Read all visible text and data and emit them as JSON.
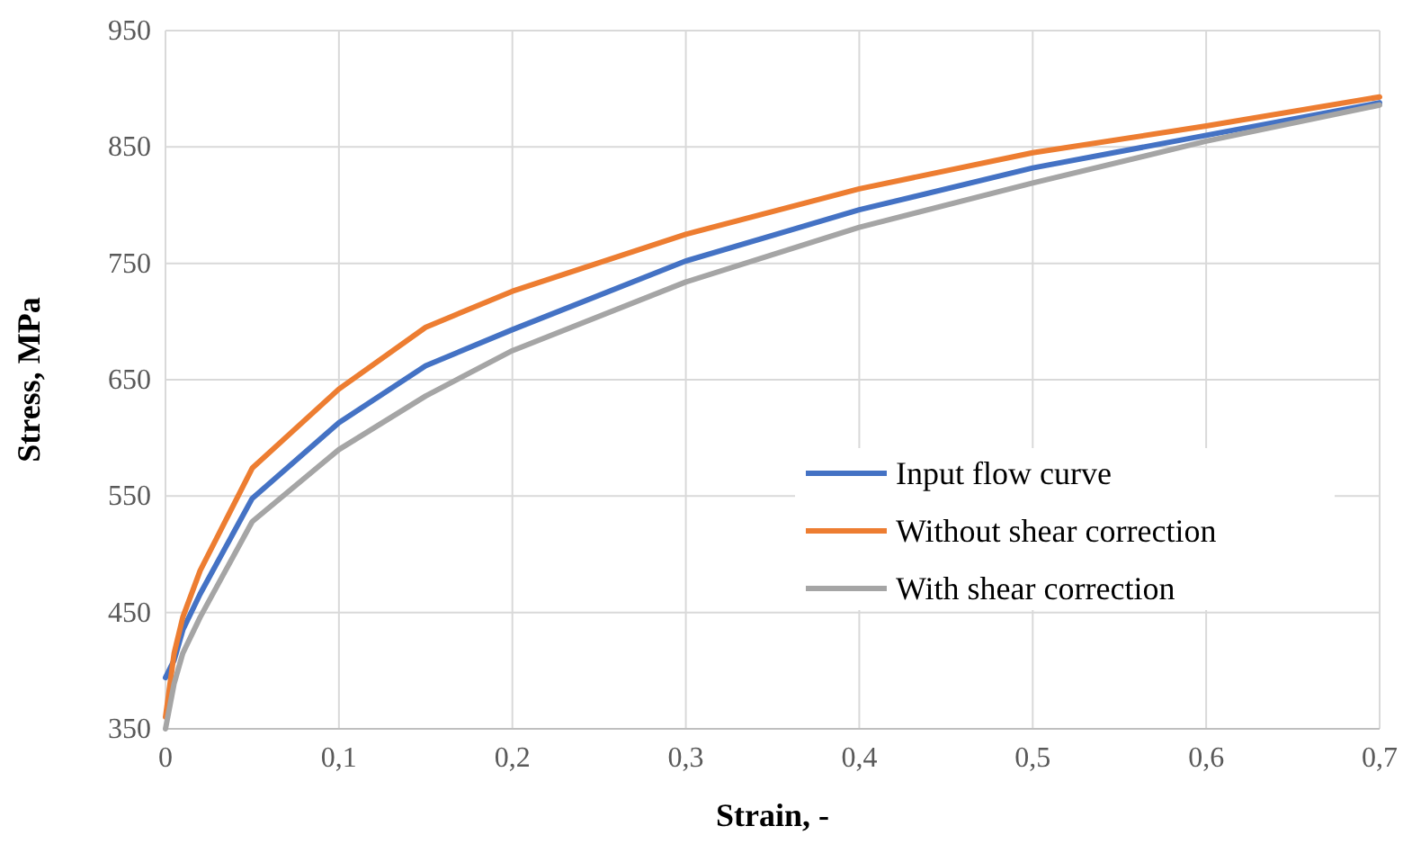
{
  "chart_data": {
    "type": "line",
    "xlabel": "Strain, -",
    "ylabel": "Stress, MPa",
    "x": [
      0,
      0.005,
      0.01,
      0.02,
      0.05,
      0.1,
      0.15,
      0.2,
      0.3,
      0.4,
      0.5,
      0.6,
      0.7
    ],
    "xlim": [
      0,
      0.7
    ],
    "xticks": [
      {
        "value": 0,
        "label": "0"
      },
      {
        "value": 0.1,
        "label": "0,1"
      },
      {
        "value": 0.2,
        "label": "0,2"
      },
      {
        "value": 0.3,
        "label": "0,3"
      },
      {
        "value": 0.4,
        "label": "0,4"
      },
      {
        "value": 0.5,
        "label": "0,5"
      },
      {
        "value": 0.6,
        "label": "0,6"
      },
      {
        "value": 0.7,
        "label": "0,7"
      }
    ],
    "ylim": [
      350,
      950
    ],
    "yticks": [
      350,
      450,
      550,
      650,
      750,
      850,
      950
    ],
    "grid": true,
    "legend": "right",
    "marker": "none",
    "line_style": "solid",
    "series": [
      {
        "name": "Input flow curve",
        "color": "#4472c4",
        "values": [
          394,
          409,
          435,
          466,
          548,
          613,
          662,
          693,
          752,
          796,
          832,
          860,
          888
        ]
      },
      {
        "name": "Without shear correction",
        "color": "#ed7d31",
        "values": [
          360,
          415,
          446,
          486,
          574,
          642,
          695,
          726,
          775,
          814,
          845,
          868,
          893
        ]
      },
      {
        "name": "With shear correction",
        "color": "#a5a5a5",
        "values": [
          350,
          389,
          415,
          446,
          528,
          590,
          636,
          675,
          734,
          781,
          819,
          855,
          886
        ]
      }
    ]
  }
}
